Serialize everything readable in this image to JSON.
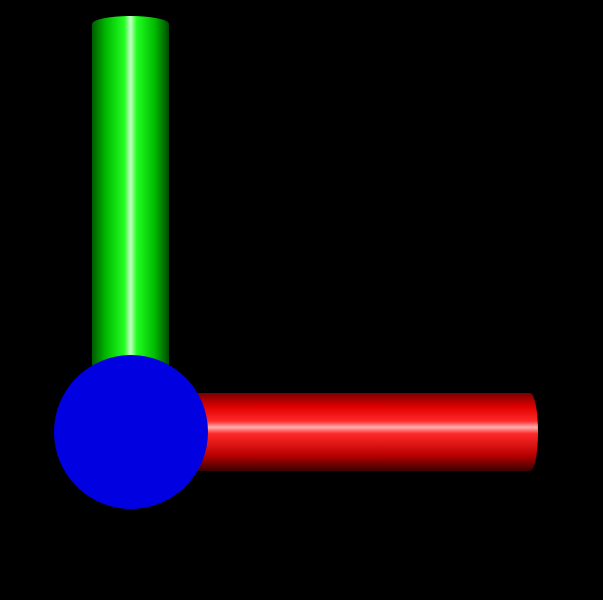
{
  "scene": {
    "background_color": "#000000",
    "objects": [
      {
        "id": "y-axis",
        "shape": "cylinder",
        "orientation": "vertical",
        "color": "#00ff00"
      },
      {
        "id": "x-axis",
        "shape": "cylinder",
        "orientation": "horizontal",
        "color": "#ff0000"
      },
      {
        "id": "z-axis",
        "shape": "sphere-endcap",
        "orientation": "toward-viewer",
        "color": "#0000e0"
      }
    ]
  }
}
